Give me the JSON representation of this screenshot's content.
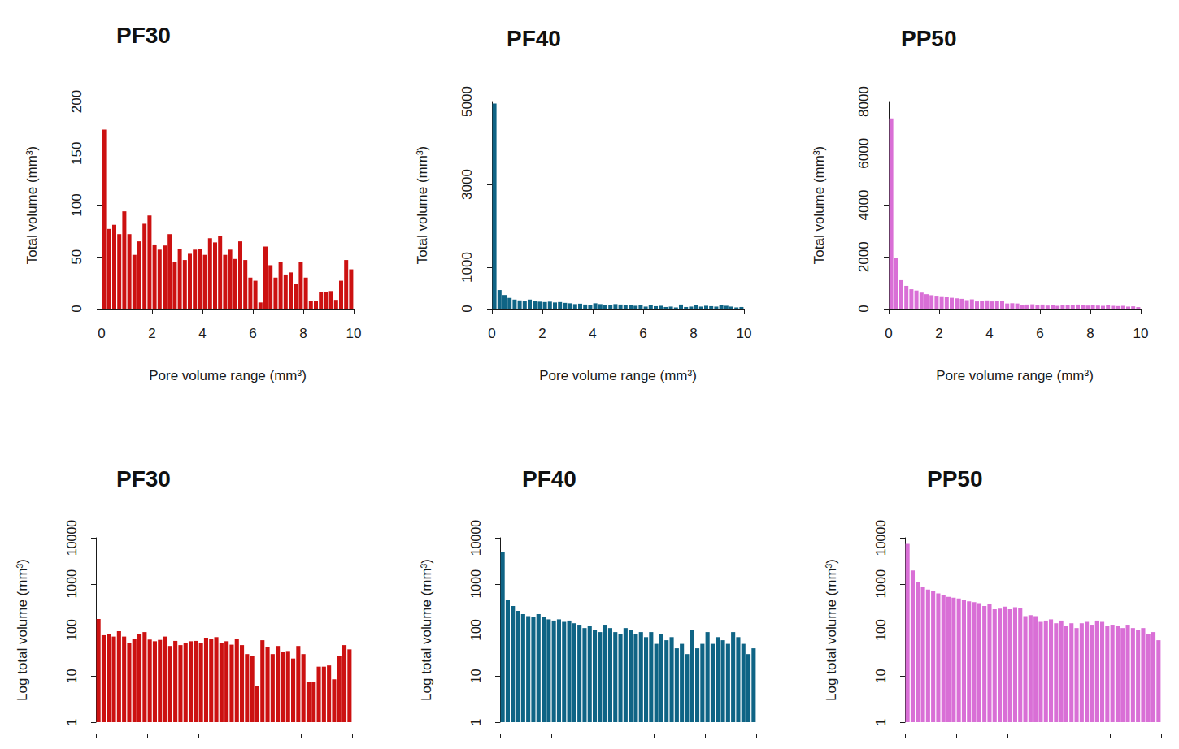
{
  "chart_data": [
    {
      "type": "histogram",
      "title": "PF30",
      "x_label": "Pore volume range (mm³)",
      "y_label": "Total volume (mm³)",
      "bins": [
        0,
        0.2,
        0.4,
        0.6,
        0.8,
        1,
        1.2,
        1.4,
        1.6,
        1.8,
        2,
        2.2,
        2.4,
        2.6,
        2.8,
        3,
        3.2,
        3.4,
        3.6,
        3.8,
        4,
        4.2,
        4.4,
        4.6,
        4.8,
        5,
        5.2,
        5.4,
        5.6,
        5.8,
        6,
        6.2,
        6.4,
        6.6,
        6.8,
        7,
        7.2,
        7.4,
        7.6,
        7.8,
        8,
        8.2,
        8.4,
        8.6,
        8.8,
        9,
        9.2,
        9.4,
        9.6,
        9.8,
        10
      ],
      "values": [
        173,
        77,
        81,
        72,
        94,
        72,
        52,
        65,
        82,
        90,
        62,
        57,
        61,
        72,
        45,
        58,
        47,
        53,
        57,
        58,
        52,
        68,
        64,
        70,
        52,
        57,
        48,
        65,
        47,
        30,
        27,
        6,
        60,
        42,
        30,
        45,
        33,
        35,
        24,
        45,
        30,
        7.5,
        7.5,
        16,
        16,
        17,
        8.5,
        27,
        47,
        38
      ],
      "color": "#cc1111",
      "xlim": [
        0,
        10
      ],
      "xticks": [
        0,
        2,
        4,
        6,
        8,
        10
      ],
      "ylim": [
        0,
        200
      ],
      "yticks": [
        0,
        50,
        100,
        150,
        200
      ],
      "grid": false
    },
    {
      "type": "histogram",
      "title": "PF40",
      "x_label": "Pore volume range (mm³)",
      "y_label": "Total volume (mm³)",
      "bins": [
        0,
        0.2,
        0.4,
        0.6,
        0.8,
        1,
        1.2,
        1.4,
        1.6,
        1.8,
        2,
        2.2,
        2.4,
        2.6,
        2.8,
        3,
        3.2,
        3.4,
        3.6,
        3.8,
        4,
        4.2,
        4.4,
        4.6,
        4.8,
        5,
        5.2,
        5.4,
        5.6,
        5.8,
        6,
        6.2,
        6.4,
        6.6,
        6.8,
        7,
        7.2,
        7.4,
        7.6,
        7.8,
        8,
        8.2,
        8.4,
        8.6,
        8.8,
        9,
        9.2,
        9.4,
        9.6,
        9.8,
        10
      ],
      "values": [
        4950,
        450,
        330,
        260,
        220,
        200,
        190,
        220,
        190,
        170,
        160,
        170,
        150,
        160,
        140,
        130,
        110,
        120,
        100,
        90,
        130,
        110,
        90,
        80,
        110,
        100,
        80,
        90,
        70,
        90,
        50,
        80,
        60,
        70,
        40,
        50,
        30,
        100,
        40,
        50,
        90,
        50,
        70,
        60,
        50,
        90,
        70,
        50,
        30,
        40
      ],
      "color": "#0f6485",
      "xlim": [
        0,
        10
      ],
      "xticks": [
        0,
        2,
        4,
        6,
        8,
        10
      ],
      "ylim": [
        0,
        5000
      ],
      "yticks": [
        0,
        1000,
        3000,
        5000
      ],
      "grid": false
    },
    {
      "type": "histogram",
      "title": "PP50",
      "x_label": "Pore volume range (mm³)",
      "y_label": "Total volume (mm³)",
      "bins": [
        0,
        0.2,
        0.4,
        0.6,
        0.8,
        1,
        1.2,
        1.4,
        1.6,
        1.8,
        2,
        2.2,
        2.4,
        2.6,
        2.8,
        3,
        3.2,
        3.4,
        3.6,
        3.8,
        4,
        4.2,
        4.4,
        4.6,
        4.8,
        5,
        5.2,
        5.4,
        5.6,
        5.8,
        6,
        6.2,
        6.4,
        6.6,
        6.8,
        7,
        7.2,
        7.4,
        7.6,
        7.8,
        8,
        8.2,
        8.4,
        8.6,
        8.8,
        9,
        9.2,
        9.4,
        9.6,
        9.8,
        10
      ],
      "values": [
        7350,
        1950,
        1100,
        880,
        750,
        700,
        620,
        560,
        520,
        500,
        480,
        460,
        420,
        400,
        380,
        330,
        360,
        280,
        290,
        320,
        280,
        310,
        300,
        200,
        210,
        200,
        150,
        160,
        170,
        140,
        160,
        120,
        140,
        110,
        140,
        150,
        130,
        160,
        150,
        120,
        130,
        120,
        110,
        130,
        110,
        100,
        110,
        80,
        90,
        60
      ],
      "color": "#d96fd6",
      "xlim": [
        0,
        10
      ],
      "xticks": [
        0,
        2,
        4,
        6,
        8,
        10
      ],
      "ylim": [
        0,
        8000
      ],
      "yticks": [
        0,
        2000,
        4000,
        6000,
        8000
      ],
      "grid": false
    },
    {
      "type": "histogram",
      "title": "PF30",
      "y_label": "Log total volume (mm³)",
      "bins": [
        0,
        0.2,
        0.4,
        0.6,
        0.8,
        1,
        1.2,
        1.4,
        1.6,
        1.8,
        2,
        2.2,
        2.4,
        2.6,
        2.8,
        3,
        3.2,
        3.4,
        3.6,
        3.8,
        4,
        4.2,
        4.4,
        4.6,
        4.8,
        5,
        5.2,
        5.4,
        5.6,
        5.8,
        6,
        6.2,
        6.4,
        6.6,
        6.8,
        7,
        7.2,
        7.4,
        7.6,
        7.8,
        8,
        8.2,
        8.4,
        8.6,
        8.8,
        9,
        9.2,
        9.4,
        9.6,
        9.8,
        10
      ],
      "values": [
        173,
        77,
        81,
        72,
        94,
        72,
        52,
        65,
        82,
        90,
        62,
        57,
        61,
        72,
        45,
        58,
        47,
        53,
        57,
        58,
        52,
        68,
        64,
        70,
        52,
        57,
        48,
        65,
        47,
        30,
        27,
        6,
        60,
        42,
        30,
        45,
        33,
        35,
        24,
        45,
        30,
        7.5,
        7.5,
        16,
        16,
        17,
        8.5,
        27,
        47,
        38
      ],
      "color": "#cc1111",
      "xlim": [
        0,
        10
      ],
      "xticks": [
        0,
        2,
        4,
        6,
        8,
        10
      ],
      "ylim": [
        1,
        10000
      ],
      "yticks": [
        1,
        10,
        100,
        1000,
        10000
      ],
      "log": "y",
      "grid": false,
      "tick_labels": "y"
    },
    {
      "type": "histogram",
      "title": "PF40",
      "y_label": "Log total volume (mm³)",
      "bins": [
        0,
        0.2,
        0.4,
        0.6,
        0.8,
        1,
        1.2,
        1.4,
        1.6,
        1.8,
        2,
        2.2,
        2.4,
        2.6,
        2.8,
        3,
        3.2,
        3.4,
        3.6,
        3.8,
        4,
        4.2,
        4.4,
        4.6,
        4.8,
        5,
        5.2,
        5.4,
        5.6,
        5.8,
        6,
        6.2,
        6.4,
        6.6,
        6.8,
        7,
        7.2,
        7.4,
        7.6,
        7.8,
        8,
        8.2,
        8.4,
        8.6,
        8.8,
        9,
        9.2,
        9.4,
        9.6,
        9.8,
        10
      ],
      "values": [
        4950,
        450,
        330,
        260,
        220,
        200,
        190,
        220,
        190,
        170,
        160,
        170,
        150,
        160,
        140,
        130,
        110,
        120,
        100,
        90,
        130,
        110,
        90,
        80,
        110,
        100,
        80,
        90,
        70,
        90,
        50,
        80,
        60,
        70,
        40,
        50,
        30,
        100,
        40,
        50,
        90,
        50,
        70,
        60,
        50,
        90,
        70,
        50,
        30,
        40
      ],
      "color": "#0f6485",
      "xlim": [
        0,
        10
      ],
      "xticks": [
        0,
        2,
        4,
        6,
        8,
        10
      ],
      "ylim": [
        1,
        10000
      ],
      "yticks": [
        1,
        10,
        100,
        1000,
        10000
      ],
      "log": "y",
      "grid": false,
      "tick_labels": "y"
    },
    {
      "type": "histogram",
      "title": "PP50",
      "y_label": "Log total volume (mm³)",
      "bins": [
        0,
        0.2,
        0.4,
        0.6,
        0.8,
        1,
        1.2,
        1.4,
        1.6,
        1.8,
        2,
        2.2,
        2.4,
        2.6,
        2.8,
        3,
        3.2,
        3.4,
        3.6,
        3.8,
        4,
        4.2,
        4.4,
        4.6,
        4.8,
        5,
        5.2,
        5.4,
        5.6,
        5.8,
        6,
        6.2,
        6.4,
        6.6,
        6.8,
        7,
        7.2,
        7.4,
        7.6,
        7.8,
        8,
        8.2,
        8.4,
        8.6,
        8.8,
        9,
        9.2,
        9.4,
        9.6,
        9.8,
        10
      ],
      "values": [
        7350,
        1950,
        1100,
        880,
        750,
        700,
        620,
        560,
        520,
        500,
        480,
        460,
        420,
        400,
        380,
        330,
        360,
        280,
        290,
        320,
        280,
        310,
        300,
        200,
        210,
        200,
        150,
        160,
        170,
        140,
        160,
        120,
        140,
        110,
        140,
        150,
        130,
        160,
        150,
        120,
        130,
        120,
        110,
        130,
        110,
        100,
        110,
        80,
        90,
        60
      ],
      "color": "#d96fd6",
      "xlim": [
        0,
        10
      ],
      "xticks": [
        0,
        2,
        4,
        6,
        8,
        10
      ],
      "ylim": [
        1,
        10000
      ],
      "yticks": [
        1,
        10,
        100,
        1000,
        10000
      ],
      "log": "y",
      "grid": false,
      "tick_labels": "y"
    }
  ]
}
